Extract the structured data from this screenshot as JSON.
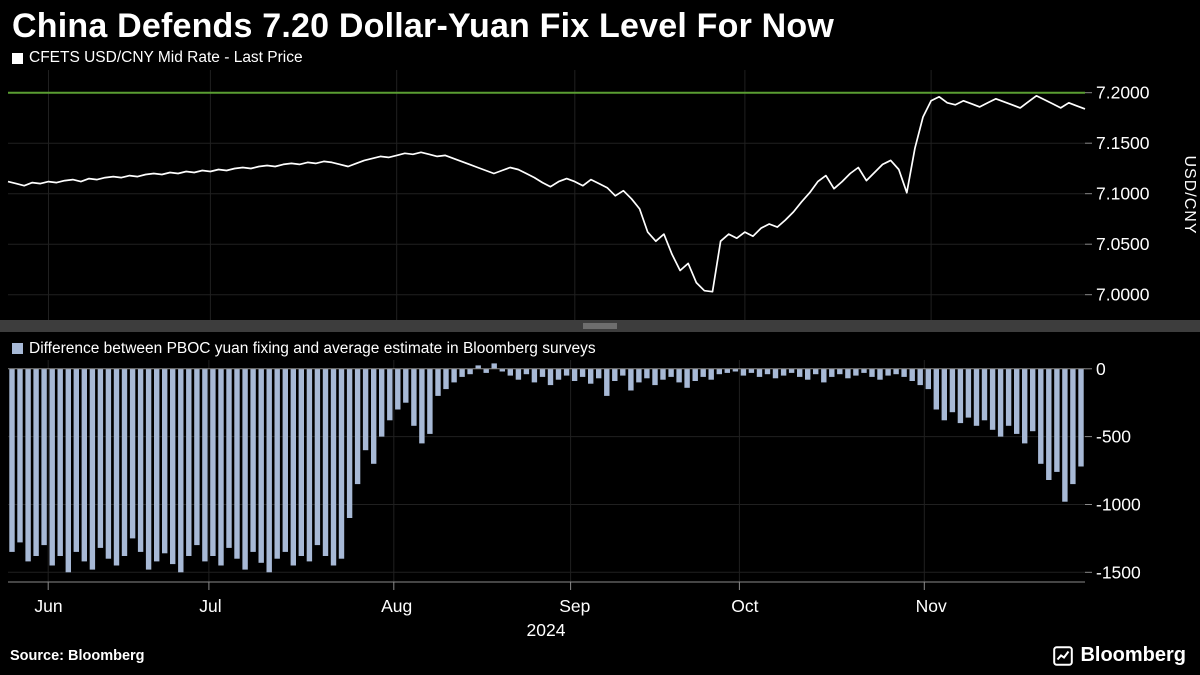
{
  "title": "China Defends 7.20 Dollar-Yuan Fix Level For Now",
  "source": "Source: Bloomberg",
  "brand": "Bloomberg",
  "colors": {
    "background": "#000000",
    "line": "#ffffff",
    "ref_line": "#5a9e32",
    "bars": "#a7b9d6",
    "grid": "#202020",
    "axis": "#8a8a8a",
    "divider": "#3d3d3d"
  },
  "xaxis": {
    "months": [
      "Jun",
      "Jul",
      "Aug",
      "Sep",
      "Oct",
      "Nov"
    ],
    "month_start_index": [
      5,
      25,
      48,
      70,
      91,
      114
    ],
    "year": "2024"
  },
  "chart_data": [
    {
      "type": "line",
      "title": "CFETS USD/CNY Mid Rate - Last Price",
      "ylabel": "USD/CNY",
      "legend_position": "top-left",
      "grid": "subtle",
      "ref_line": 7.2,
      "yticks": [
        7.2,
        7.15,
        7.1,
        7.05,
        7.0
      ],
      "ytick_labels": [
        "7.2000",
        "7.1500",
        "7.1000",
        "7.0500",
        "7.0000"
      ],
      "ylim": [
        6.975,
        7.2225
      ],
      "values": [
        7.112,
        7.11,
        7.108,
        7.111,
        7.11,
        7.112,
        7.111,
        7.113,
        7.114,
        7.112,
        7.115,
        7.114,
        7.116,
        7.117,
        7.116,
        7.118,
        7.117,
        7.119,
        7.12,
        7.119,
        7.121,
        7.12,
        7.122,
        7.121,
        7.123,
        7.122,
        7.124,
        7.123,
        7.125,
        7.126,
        7.125,
        7.127,
        7.128,
        7.127,
        7.129,
        7.13,
        7.129,
        7.131,
        7.13,
        7.132,
        7.131,
        7.129,
        7.127,
        7.13,
        7.133,
        7.135,
        7.137,
        7.136,
        7.138,
        7.14,
        7.139,
        7.141,
        7.139,
        7.137,
        7.138,
        7.135,
        7.132,
        7.129,
        7.126,
        7.123,
        7.12,
        7.123,
        7.126,
        7.124,
        7.12,
        7.116,
        7.111,
        7.107,
        7.112,
        7.115,
        7.112,
        7.108,
        7.114,
        7.11,
        7.106,
        7.098,
        7.103,
        7.095,
        7.085,
        7.062,
        7.053,
        7.06,
        7.04,
        7.024,
        7.031,
        7.012,
        7.004,
        7.003,
        7.053,
        7.06,
        7.056,
        7.062,
        7.058,
        7.066,
        7.07,
        7.067,
        7.074,
        7.082,
        7.092,
        7.101,
        7.112,
        7.118,
        7.105,
        7.112,
        7.12,
        7.126,
        7.113,
        7.121,
        7.129,
        7.133,
        7.124,
        7.101,
        7.145,
        7.176,
        7.192,
        7.196,
        7.19,
        7.188,
        7.192,
        7.189,
        7.186,
        7.19,
        7.194,
        7.191,
        7.188,
        7.185,
        7.191,
        7.197,
        7.193,
        7.189,
        7.185,
        7.19,
        7.187,
        7.184
      ]
    },
    {
      "type": "bar",
      "title": "Difference between PBOC yuan fixing and average estimate in Bloomberg surveys",
      "legend_position": "top-left",
      "grid": "subtle",
      "yticks": [
        0,
        -500,
        -1000,
        -1500
      ],
      "ytick_labels": [
        "0",
        "-500",
        "-1000",
        "-1500"
      ],
      "ylim": [
        -1660,
        65
      ],
      "values": [
        -1350,
        -1280,
        -1420,
        -1380,
        -1300,
        -1450,
        -1380,
        -1500,
        -1350,
        -1420,
        -1480,
        -1320,
        -1400,
        -1450,
        -1380,
        -1250,
        -1350,
        -1480,
        -1420,
        -1360,
        -1440,
        -1500,
        -1380,
        -1300,
        -1420,
        -1380,
        -1450,
        -1320,
        -1400,
        -1480,
        -1350,
        -1430,
        -1500,
        -1400,
        -1350,
        -1450,
        -1380,
        -1420,
        -1300,
        -1380,
        -1450,
        -1400,
        -1100,
        -850,
        -600,
        -700,
        -500,
        -380,
        -300,
        -250,
        -420,
        -550,
        -480,
        -200,
        -150,
        -100,
        -60,
        -40,
        25,
        -30,
        40,
        -20,
        -50,
        -80,
        -40,
        -100,
        -60,
        -120,
        -80,
        -50,
        -90,
        -60,
        -110,
        -70,
        -200,
        -90,
        -50,
        -160,
        -100,
        -70,
        -120,
        -80,
        -60,
        -100,
        -140,
        -90,
        -60,
        -80,
        -40,
        -30,
        -20,
        -50,
        -30,
        -60,
        -40,
        -70,
        -50,
        -30,
        -60,
        -80,
        -40,
        -100,
        -60,
        -40,
        -70,
        -50,
        -30,
        -60,
        -80,
        -50,
        -40,
        -60,
        -90,
        -120,
        -150,
        -300,
        -380,
        -320,
        -400,
        -360,
        -420,
        -380,
        -450,
        -500,
        -420,
        -480,
        -550,
        -460,
        -700,
        -820,
        -760,
        -980,
        -850,
        -720
      ]
    }
  ]
}
